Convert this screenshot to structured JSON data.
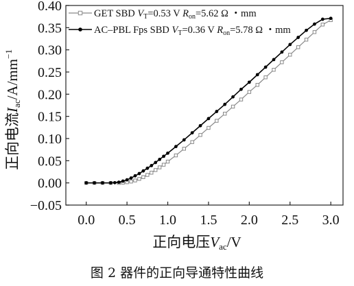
{
  "chart_data": {
    "type": "line",
    "xlabel": {
      "main": "正向电压",
      "var": "V",
      "sub": "ac",
      "unit": "/V"
    },
    "ylabel": {
      "main": "正向电流",
      "var": "I",
      "sub": "ac",
      "unit": "/A/mm",
      "sup": "−1"
    },
    "xlim": [
      -0.25,
      3.15
    ],
    "ylim": [
      -0.05,
      0.4
    ],
    "xticks": [
      0.0,
      0.5,
      1.0,
      1.5,
      2.0,
      2.5,
      3.0
    ],
    "yticks": [
      -0.05,
      0.0,
      0.05,
      0.1,
      0.15,
      0.2,
      0.25,
      0.3,
      0.35,
      0.4
    ],
    "legend_position": "top-left",
    "series": [
      {
        "name": "GET SBD",
        "legend": {
          "name": "GET SBD",
          "vt_label": "V",
          "vt_sub": "T",
          "vt_value": "=0.53 V",
          "ron_label": "R",
          "ron_sub": "on",
          "ron_value": "=5.62 Ω ・mm"
        },
        "color": "#888888",
        "marker": "open-square",
        "x": [
          0.0,
          0.1,
          0.2,
          0.3,
          0.4,
          0.45,
          0.5,
          0.55,
          0.6,
          0.65,
          0.7,
          0.75,
          0.8,
          0.85,
          0.9,
          0.95,
          1.0,
          1.1,
          1.2,
          1.3,
          1.4,
          1.5,
          1.6,
          1.7,
          1.8,
          1.9,
          2.0,
          2.1,
          2.2,
          2.3,
          2.4,
          2.5,
          2.6,
          2.7,
          2.8,
          2.9,
          3.0
        ],
        "y": [
          0.0,
          0.0,
          0.0,
          0.0,
          0.0,
          0.0005,
          0.0015,
          0.003,
          0.0055,
          0.009,
          0.013,
          0.018,
          0.023,
          0.029,
          0.035,
          0.041,
          0.048,
          0.062,
          0.077,
          0.092,
          0.108,
          0.124,
          0.14,
          0.156,
          0.172,
          0.188,
          0.205,
          0.221,
          0.238,
          0.255,
          0.272,
          0.289,
          0.306,
          0.323,
          0.34,
          0.357,
          0.367
        ]
      },
      {
        "name": "AC–PBL Fps SBD",
        "legend": {
          "name": "AC–PBL Fps SBD",
          "vt_label": "V",
          "vt_sub": "T",
          "vt_value": "=0.36 V",
          "ron_label": "R",
          "ron_sub": "on",
          "ron_value": "=5.78 Ω ・mm"
        },
        "color": "#000000",
        "marker": "filled-circle",
        "x": [
          0.0,
          0.1,
          0.2,
          0.3,
          0.35,
          0.4,
          0.45,
          0.5,
          0.55,
          0.6,
          0.65,
          0.7,
          0.75,
          0.8,
          0.85,
          0.9,
          0.95,
          1.0,
          1.1,
          1.2,
          1.3,
          1.4,
          1.5,
          1.6,
          1.7,
          1.8,
          1.9,
          2.0,
          2.1,
          2.2,
          2.3,
          2.4,
          2.5,
          2.6,
          2.7,
          2.8,
          2.9,
          3.0
        ],
        "y": [
          0.0,
          0.0,
          0.0,
          0.0,
          0.0005,
          0.0015,
          0.004,
          0.007,
          0.011,
          0.016,
          0.021,
          0.027,
          0.033,
          0.039,
          0.046,
          0.053,
          0.06,
          0.067,
          0.082,
          0.097,
          0.113,
          0.129,
          0.145,
          0.161,
          0.177,
          0.194,
          0.211,
          0.227,
          0.244,
          0.261,
          0.278,
          0.295,
          0.312,
          0.328,
          0.344,
          0.358,
          0.369,
          0.371
        ]
      }
    ]
  },
  "caption": "图 2  器件的正向导通特性曲线"
}
